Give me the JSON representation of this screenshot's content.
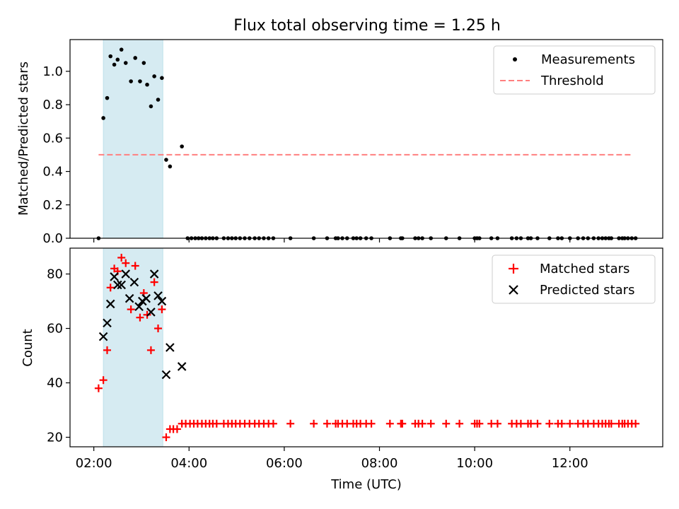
{
  "chart_data": [
    {
      "type": "scatter",
      "title": "Flux total observing time = 1.25 h",
      "xlabel": "",
      "ylabel": "Matched/Predicted stars",
      "xlim_hours": [
        1.5,
        13.95
      ],
      "ylim": [
        0,
        1.19
      ],
      "yticks": [
        0.0,
        0.2,
        0.4,
        0.6,
        0.8,
        1.0
      ],
      "ytick_labels": [
        "0.0",
        "0.2",
        "0.4",
        "0.6",
        "0.8",
        "1.0"
      ],
      "shaded_span_hours": [
        2.2,
        3.45
      ],
      "legend_position": "top-right",
      "legend": [
        "Measurements",
        "Threshold"
      ],
      "threshold": {
        "value": 0.5,
        "x_range_hours": [
          2.1,
          13.3
        ],
        "color": "#ff7f7f"
      },
      "series": [
        {
          "name": "Measurements",
          "color": "#000000",
          "x_hours": [
            2.1,
            2.2,
            2.28,
            2.35,
            2.43,
            2.5,
            2.58,
            2.67,
            2.78,
            2.87,
            2.97,
            3.05,
            3.12,
            3.2,
            3.27,
            3.35,
            3.43,
            3.52,
            3.6,
            3.85,
            3.97,
            4.05,
            4.13,
            4.2,
            4.27,
            4.35,
            4.43,
            4.5,
            4.58,
            4.73,
            4.82,
            4.9,
            4.98,
            5.07,
            5.17,
            5.27,
            5.38,
            5.47,
            5.57,
            5.67,
            5.77,
            6.13,
            6.62,
            6.9,
            7.08,
            7.13,
            7.22,
            7.32,
            7.45,
            7.52,
            7.6,
            7.72,
            7.83,
            8.22,
            8.45,
            8.48,
            8.75,
            8.82,
            8.9,
            9.08,
            9.4,
            9.68,
            10.0,
            10.05,
            10.1,
            10.35,
            10.48,
            10.78,
            10.88,
            10.97,
            11.12,
            11.18,
            11.32,
            11.57,
            11.75,
            11.83,
            12.0,
            12.17,
            12.28,
            12.38,
            12.5,
            12.6,
            12.68,
            12.75,
            12.82,
            12.87,
            13.03,
            13.1,
            13.15,
            13.22,
            13.3,
            13.38
          ],
          "y": [
            0.0,
            0.72,
            0.84,
            1.09,
            1.04,
            1.07,
            1.13,
            1.05,
            0.94,
            1.08,
            0.94,
            1.05,
            0.92,
            0.79,
            0.97,
            0.83,
            0.96,
            0.47,
            0.43,
            0.55,
            0.0,
            0.0,
            0.0,
            0.0,
            0.0,
            0.0,
            0.0,
            0.0,
            0.0,
            0.0,
            0.0,
            0.0,
            0.0,
            0.0,
            0.0,
            0.0,
            0.0,
            0.0,
            0.0,
            0.0,
            0.0,
            0.0,
            0.0,
            0.0,
            0.0,
            0.0,
            0.0,
            0.0,
            0.0,
            0.0,
            0.0,
            0.0,
            0.0,
            0.0,
            0.0,
            0.0,
            0.0,
            0.0,
            0.0,
            0.0,
            0.0,
            0.0,
            0.0,
            0.0,
            0.0,
            0.0,
            0.0,
            0.0,
            0.0,
            0.0,
            0.0,
            0.0,
            0.0,
            0.0,
            0.0,
            0.0,
            0.0,
            0.0,
            0.0,
            0.0,
            0.0,
            0.0,
            0.0,
            0.0,
            0.0,
            0.0,
            0.0,
            0.0,
            0.0,
            0.0,
            0.0,
            0.0
          ]
        }
      ]
    },
    {
      "type": "scatter",
      "title": "",
      "xlabel": "Time (UTC)",
      "ylabel": "Count",
      "xlim_hours": [
        1.5,
        13.95
      ],
      "ylim": [
        16.5,
        89.5
      ],
      "yticks": [
        20,
        40,
        60,
        80
      ],
      "ytick_labels": [
        "20",
        "40",
        "60",
        "80"
      ],
      "xticks_hours": [
        2,
        4,
        6,
        8,
        10,
        12
      ],
      "xtick_labels": [
        "02:00",
        "04:00",
        "06:00",
        "08:00",
        "10:00",
        "12:00"
      ],
      "shaded_span_hours": [
        2.2,
        3.45
      ],
      "legend_position": "top-right",
      "legend": [
        "Matched stars",
        "Predicted stars"
      ],
      "series": [
        {
          "name": "Matched stars",
          "marker": "plus",
          "color": "#ff0000",
          "x_hours": [
            2.1,
            2.2,
            2.28,
            2.35,
            2.43,
            2.5,
            2.58,
            2.67,
            2.78,
            2.87,
            2.97,
            3.05,
            3.12,
            3.2,
            3.27,
            3.35,
            3.43,
            3.52,
            3.6,
            3.67,
            3.75,
            3.85,
            3.93,
            4.02,
            4.1,
            4.18,
            4.27,
            4.35,
            4.43,
            4.5,
            4.58,
            4.73,
            4.82,
            4.9,
            4.98,
            5.07,
            5.17,
            5.27,
            5.38,
            5.47,
            5.57,
            5.67,
            5.77,
            6.13,
            6.62,
            6.9,
            7.08,
            7.13,
            7.22,
            7.32,
            7.45,
            7.52,
            7.6,
            7.72,
            7.83,
            8.22,
            8.45,
            8.48,
            8.75,
            8.82,
            8.9,
            9.08,
            9.4,
            9.68,
            10.0,
            10.05,
            10.1,
            10.35,
            10.48,
            10.78,
            10.88,
            10.97,
            11.12,
            11.18,
            11.32,
            11.57,
            11.75,
            11.83,
            12.0,
            12.17,
            12.28,
            12.38,
            12.5,
            12.6,
            12.68,
            12.75,
            12.82,
            12.87,
            13.03,
            13.1,
            13.15,
            13.22,
            13.3,
            13.38
          ],
          "y": [
            38,
            41,
            52,
            75,
            82,
            81,
            86,
            84,
            67,
            83,
            64,
            73,
            65,
            52,
            77,
            60,
            67,
            20,
            23,
            23,
            23,
            25,
            25,
            25,
            25,
            25,
            25,
            25,
            25,
            25,
            25,
            25,
            25,
            25,
            25,
            25,
            25,
            25,
            25,
            25,
            25,
            25,
            25,
            25,
            25,
            25,
            25,
            25,
            25,
            25,
            25,
            25,
            25,
            25,
            25,
            25,
            25,
            25,
            25,
            25,
            25,
            25,
            25,
            25,
            25,
            25,
            25,
            25,
            25,
            25,
            25,
            25,
            25,
            25,
            25,
            25,
            25,
            25,
            25,
            25,
            25,
            25,
            25,
            25,
            25,
            25,
            25,
            25,
            25,
            25,
            25,
            25,
            25,
            25
          ]
        },
        {
          "name": "Predicted stars",
          "marker": "x",
          "color": "#000000",
          "x_hours": [
            2.2,
            2.28,
            2.35,
            2.43,
            2.5,
            2.58,
            2.67,
            2.75,
            2.85,
            2.95,
            3.02,
            3.1,
            3.2,
            3.27,
            3.35,
            3.43,
            3.52,
            3.6,
            3.85
          ],
          "y": [
            57,
            62,
            69,
            79,
            76,
            76,
            80,
            71,
            77,
            68,
            70,
            71,
            66,
            80,
            72,
            70,
            43,
            53,
            46
          ]
        }
      ]
    }
  ]
}
